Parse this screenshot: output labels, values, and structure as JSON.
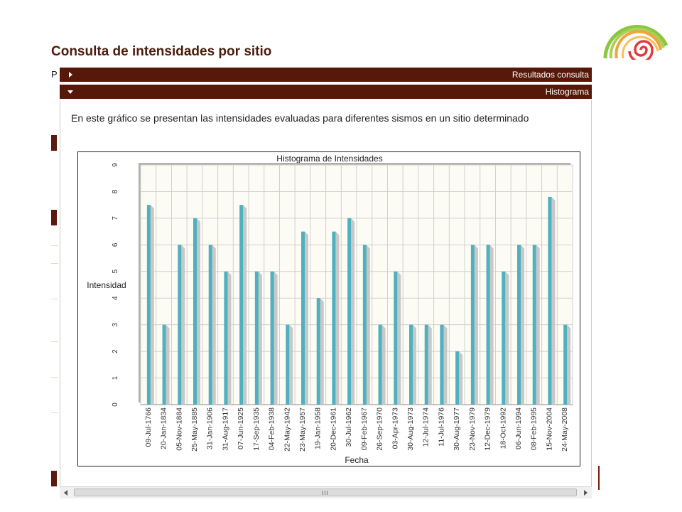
{
  "page": {
    "title": "Consulta de intensidades por sitio",
    "cut_letter": "P"
  },
  "sections": {
    "results": {
      "label": "Resultados consulta"
    },
    "histogram": {
      "label": "Histograma",
      "description": "En este gráfico se presentan las intensidades evaluadas para diferentes sismos en un sitio determinado"
    }
  },
  "logo": {
    "icon": "spiral-logo-icon",
    "colors": [
      "#8cc63f",
      "#f2a33a",
      "#e03a3a"
    ]
  },
  "scrollbar": {
    "grip": "III"
  },
  "colors": {
    "header": "#561809",
    "bar": "#4fb0c0",
    "bar_shadow": "#c8c8c8",
    "plot_bg": "#fdfcf4",
    "grid": "#cfcfcf"
  },
  "chart_data": {
    "type": "bar",
    "title": "Histograma de Intensidades",
    "xlabel": "Fecha",
    "ylabel": "Intensidad",
    "ylim": [
      0,
      9
    ],
    "yticks": [
      0,
      1,
      2,
      3,
      4,
      5,
      6,
      7,
      8,
      9
    ],
    "grid": true,
    "categories": [
      "09-Jul-1766",
      "20-Jan-1834",
      "05-Nov-1884",
      "25-May-1885",
      "31-Jan-1906",
      "31-Aug-1917",
      "07-Jun-1925",
      "17-Sep-1935",
      "04-Feb-1938",
      "22-May-1942",
      "23-May-1957",
      "19-Jan-1958",
      "20-Dec-1961",
      "30-Jul-1962",
      "09-Feb-1967",
      "26-Sep-1970",
      "03-Apr-1973",
      "30-Aug-1973",
      "12-Jul-1974",
      "11-Jul-1976",
      "30-Aug-1977",
      "23-Nov-1979",
      "12-Dec-1979",
      "18-Oct-1992",
      "06-Jun-1994",
      "08-Feb-1995",
      "15-Nov-2004",
      "24-May-2008"
    ],
    "values": [
      7.5,
      3,
      6,
      7,
      6,
      5,
      7.5,
      5,
      5,
      3,
      6.5,
      4,
      6.5,
      7,
      6,
      3,
      5,
      3,
      3,
      3,
      2,
      6,
      6,
      5,
      6,
      6,
      7.8,
      3
    ]
  }
}
